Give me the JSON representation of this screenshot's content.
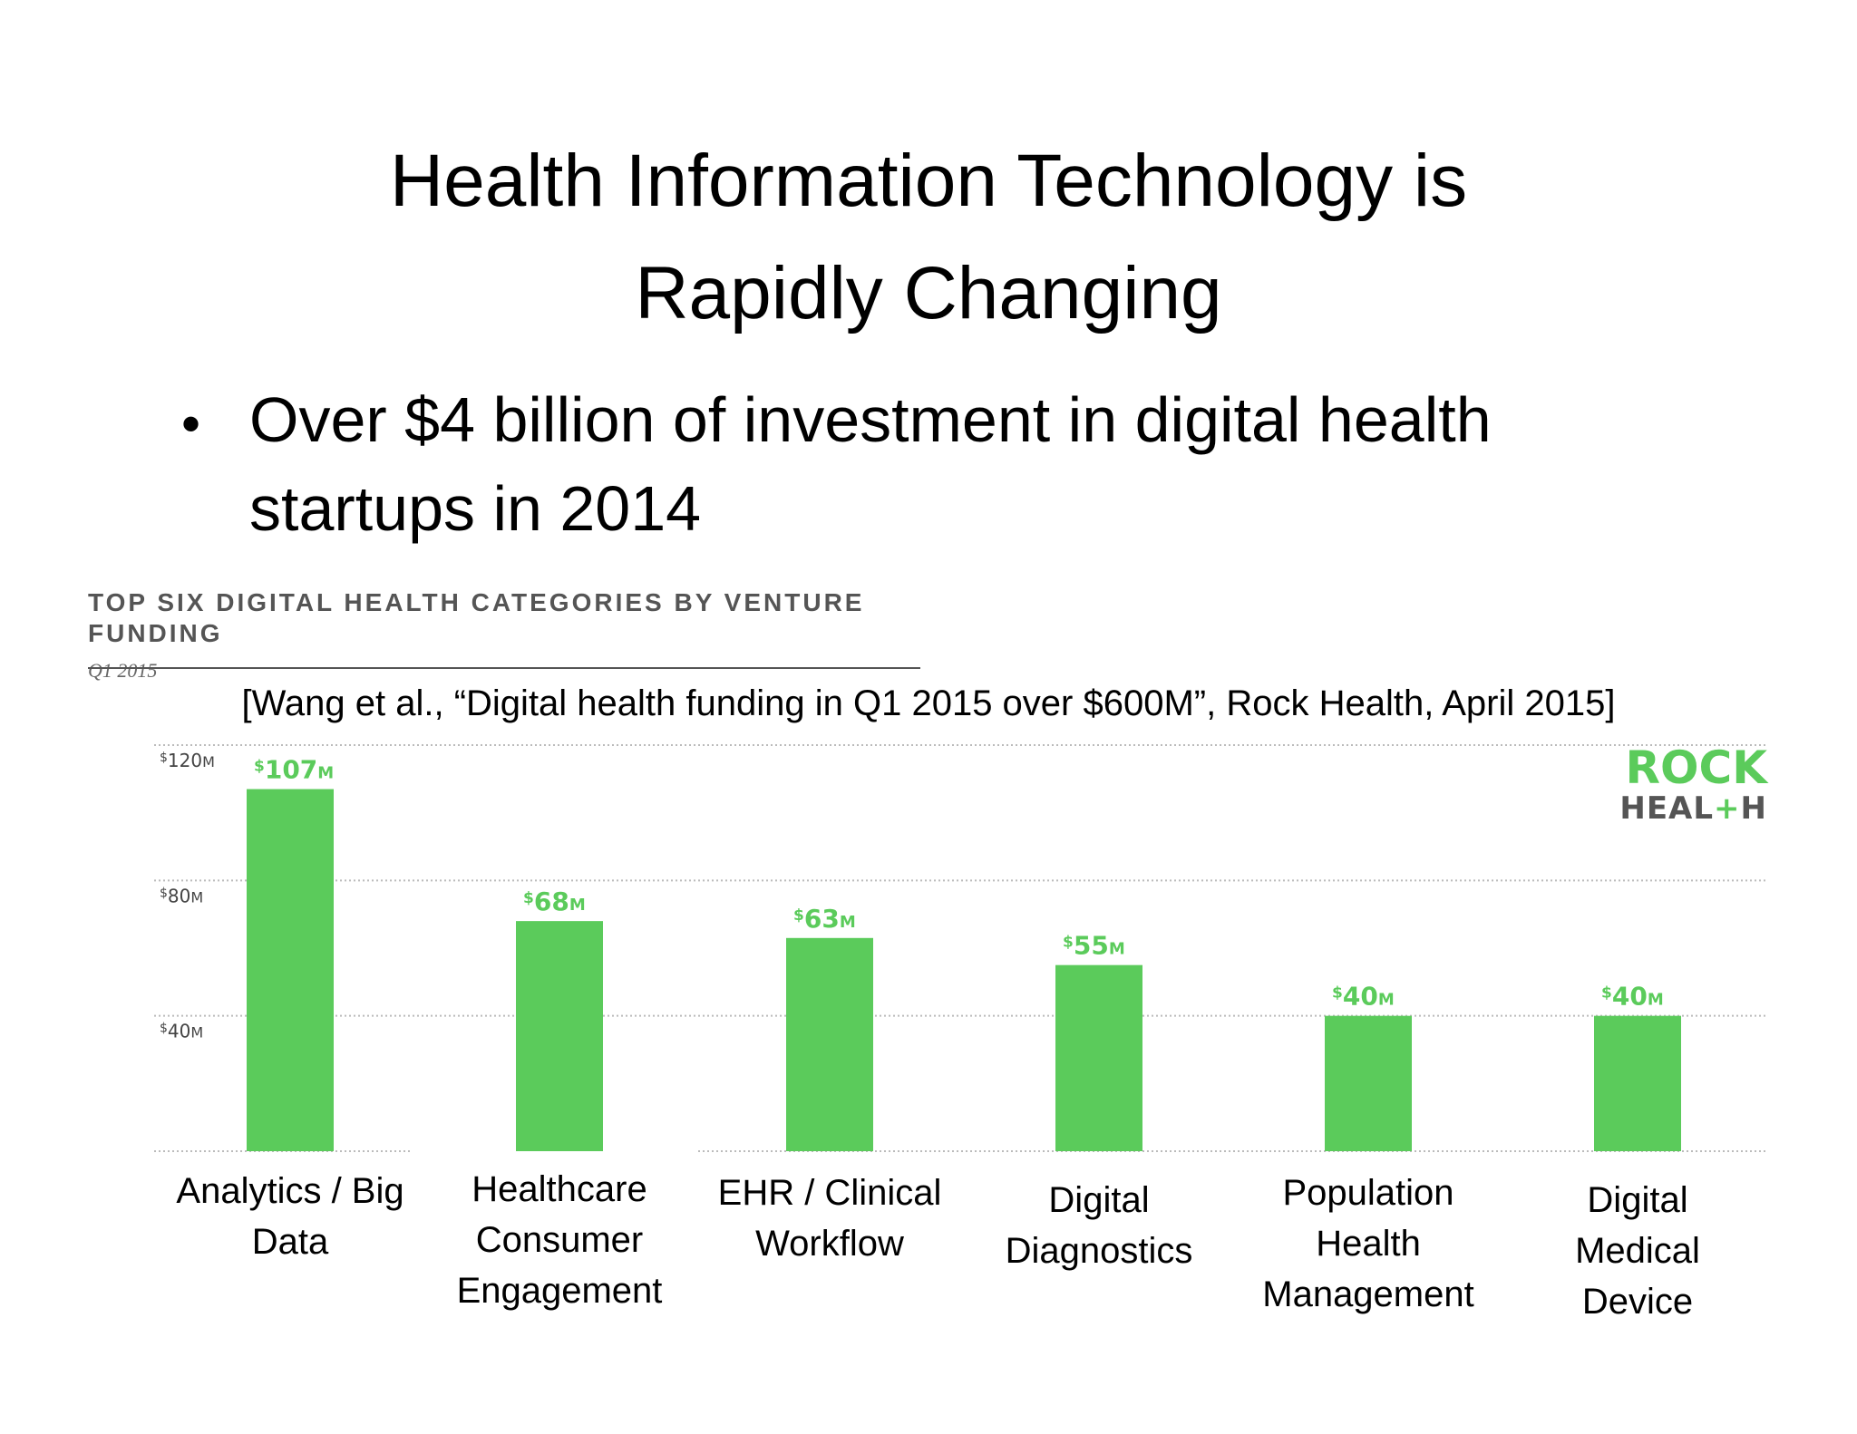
{
  "slide": {
    "title_line1": "Health Information Technology is",
    "title_line2": "Rapidly Changing",
    "bullet_symbol": "•",
    "bullet_text": "Over $4 billion of investment in digital health startups in 2014",
    "citation": "[Wang et al., “Digital health funding in Q1 2015 over $600M”, Rock Health, April 2015]"
  },
  "logo": {
    "line1": "ROCK",
    "line2_a": "HEAL",
    "line2_plus": "+",
    "line2_b": "H"
  },
  "colors": {
    "bar": "#5bcb5b",
    "value_label": "#5bcb5b",
    "axis_text": "#444444",
    "grid": "#bbbbbb",
    "logo_green": "#5bcb5b",
    "logo_gray": "#555555"
  },
  "chart_data": {
    "type": "bar",
    "title": "TOP SIX DIGITAL HEALTH CATEGORIES BY VENTURE FUNDING",
    "subtitle": "Q1 2015",
    "categories": [
      "Analytics / Big\nData",
      "Healthcare\nConsumer\nEngagement",
      "EHR / Clinical\nWorkflow",
      "Digital\nDiagnostics",
      "Population\nHealth\nManagement",
      "Digital\nMedical\nDevice"
    ],
    "values": [
      107,
      68,
      63,
      55,
      40,
      40
    ],
    "value_labels": [
      "107",
      "68",
      "63",
      "55",
      "40",
      "40"
    ],
    "value_prefix": "$",
    "value_suffix": "M",
    "unit": "millions USD",
    "ylim": [
      0,
      120
    ],
    "yticks": [
      40,
      80,
      120
    ],
    "ytick_labels": [
      "40",
      "80",
      "120"
    ],
    "grid": true,
    "xlabel": "",
    "ylabel": ""
  }
}
